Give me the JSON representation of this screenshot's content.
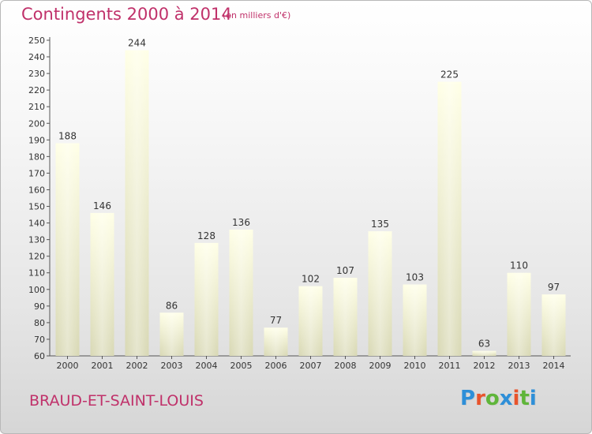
{
  "header": {
    "title": "Contingents 2000 à 2014",
    "subtitle": "(en milliers d'€)"
  },
  "footer": {
    "place": "BRAUD-ET-SAINT-LOUIS",
    "logo": "Proxiti",
    "logo_colors": [
      "#2e8fd8",
      "#e8542c",
      "#5fb53a",
      "#2e8fd8",
      "#e8542c",
      "#5fb53a",
      "#2e8fd8"
    ]
  },
  "chart_data": {
    "type": "bar",
    "title": "Contingents 2000 à 2014",
    "subtitle": "(en milliers d'€)",
    "categories": [
      "2000",
      "2001",
      "2002",
      "2003",
      "2004",
      "2005",
      "2006",
      "2007",
      "2008",
      "2009",
      "2010",
      "2011",
      "2012",
      "2013",
      "2014"
    ],
    "values": [
      188,
      146,
      244,
      86,
      128,
      136,
      77,
      102,
      107,
      135,
      103,
      225,
      63,
      110,
      97
    ],
    "ylim": [
      60,
      250
    ],
    "yticks": [
      60,
      70,
      80,
      90,
      100,
      110,
      120,
      130,
      140,
      150,
      160,
      170,
      180,
      190,
      200,
      210,
      220,
      230,
      240,
      250
    ],
    "grid": false,
    "bar_color": "#f8f8d2"
  }
}
